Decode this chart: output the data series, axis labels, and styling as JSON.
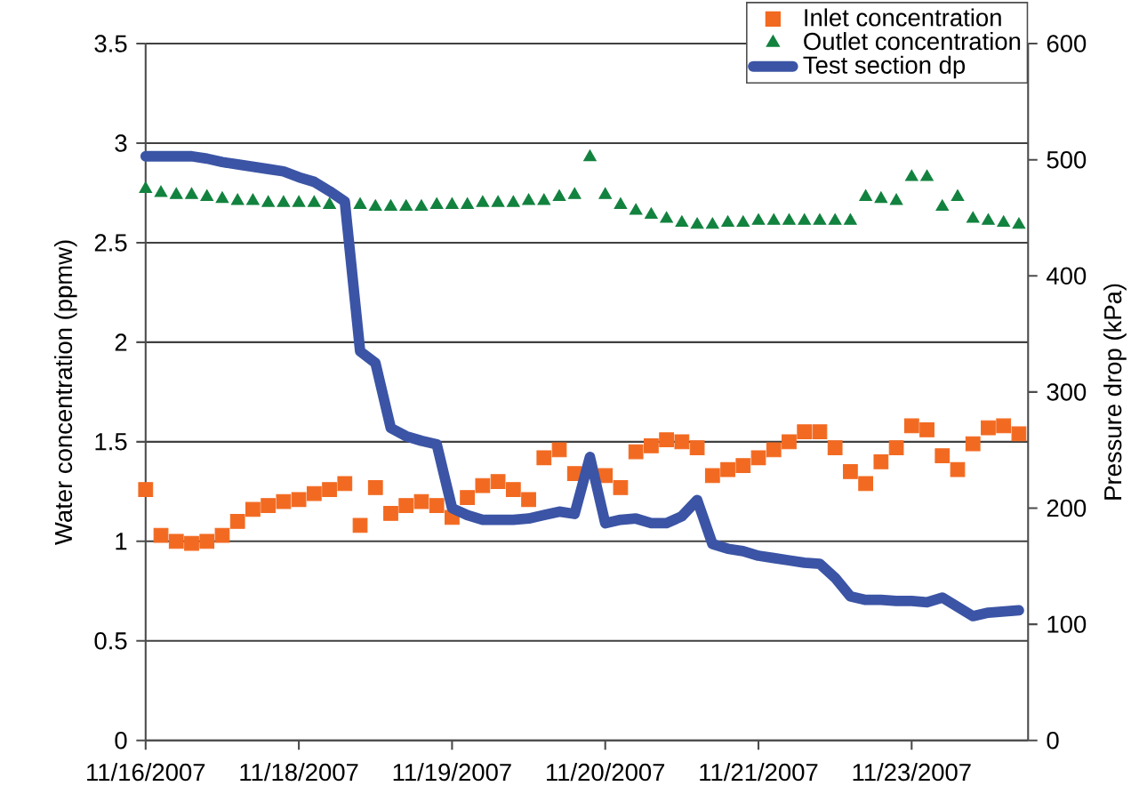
{
  "chart_data": {
    "type": "line",
    "ylabel": "Water concentration (ppmw)",
    "y2label": "Pressure drop (kPa)",
    "categories": [
      "11/16/2007",
      null,
      null,
      null,
      null,
      null,
      null,
      null,
      null,
      null,
      "11/18/2007",
      null,
      null,
      null,
      null,
      null,
      null,
      null,
      null,
      null,
      "11/19/2007",
      null,
      null,
      null,
      null,
      null,
      null,
      null,
      null,
      null,
      "11/20/2007",
      null,
      null,
      null,
      null,
      null,
      null,
      null,
      null,
      null,
      "11/21/2007",
      null,
      null,
      null,
      null,
      null,
      null,
      null,
      null,
      null,
      "11/23/2007",
      null,
      null,
      null,
      null,
      null,
      null,
      null
    ],
    "ylim": [
      0,
      3.5
    ],
    "yticks": [
      0,
      0.5,
      1,
      1.5,
      2,
      2.5,
      3,
      3.5
    ],
    "y2lim": [
      0,
      600
    ],
    "y2ticks": [
      0,
      100,
      200,
      300,
      400,
      500,
      600
    ],
    "grid": "y",
    "legend": "top right",
    "series": [
      {
        "name": "Inlet concentration",
        "type": "scatter",
        "marker": "square",
        "color": "#f26a21",
        "values": [
          1.26,
          1.03,
          1.0,
          0.99,
          1.0,
          1.03,
          1.1,
          1.16,
          1.18,
          1.2,
          1.21,
          1.24,
          1.26,
          1.29,
          1.08,
          1.27,
          1.14,
          1.18,
          1.2,
          1.18,
          1.12,
          1.22,
          1.28,
          1.3,
          1.26,
          1.21,
          1.42,
          1.46,
          1.34,
          null,
          1.33,
          1.27,
          1.45,
          1.48,
          1.51,
          1.5,
          1.47,
          1.33,
          1.36,
          1.38,
          1.42,
          1.46,
          1.5,
          1.55,
          1.55,
          1.47,
          1.35,
          1.29,
          1.4,
          1.47,
          1.58,
          1.56,
          1.43,
          1.36,
          1.49,
          1.57,
          1.58,
          1.54
        ]
      },
      {
        "name": "Outlet concentration",
        "type": "scatter",
        "marker": "triangle",
        "color": "#12823f",
        "values": [
          2.77,
          2.75,
          2.74,
          2.74,
          2.73,
          2.72,
          2.71,
          2.71,
          2.7,
          2.7,
          2.7,
          2.7,
          2.69,
          null,
          2.69,
          2.68,
          2.68,
          2.68,
          2.68,
          2.69,
          2.69,
          2.69,
          2.7,
          2.7,
          2.7,
          2.71,
          2.71,
          2.73,
          2.74,
          2.93,
          2.74,
          2.69,
          2.66,
          2.64,
          2.62,
          2.6,
          2.59,
          2.59,
          2.6,
          2.6,
          2.61,
          2.61,
          2.61,
          2.61,
          2.61,
          2.61,
          2.61,
          2.73,
          2.72,
          2.71,
          2.83,
          2.83,
          2.68,
          2.73,
          2.62,
          2.61,
          2.6,
          2.59
        ]
      },
      {
        "name": "Test section dp",
        "axis": "y2",
        "marker": "none",
        "color": "#3b54a5",
        "values": [
          503,
          503,
          503,
          503,
          501,
          498,
          496,
          494,
          492,
          490,
          485,
          481,
          473,
          464,
          335,
          325,
          269,
          262,
          258,
          255,
          200,
          194,
          190,
          190,
          190,
          191,
          194,
          197,
          195,
          244,
          187,
          190,
          191,
          187,
          187,
          193,
          207,
          169,
          165,
          163,
          159,
          157,
          155,
          153,
          152,
          140,
          124,
          121,
          121,
          120,
          120,
          119,
          123,
          115,
          107,
          110,
          111,
          112
        ]
      }
    ]
  }
}
